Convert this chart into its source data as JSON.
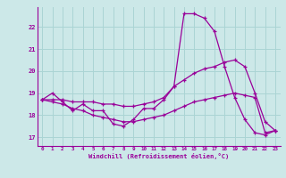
{
  "xlabel": "Windchill (Refroidissement éolien,°C)",
  "bg_color": "#cce8e8",
  "grid_color": "#aad4d4",
  "line_color": "#990099",
  "xticks": [
    0,
    1,
    2,
    3,
    4,
    5,
    6,
    7,
    8,
    9,
    10,
    11,
    12,
    13,
    14,
    15,
    16,
    17,
    18,
    19,
    20,
    21,
    22,
    23
  ],
  "yticks": [
    17,
    18,
    19,
    20,
    21,
    22
  ],
  "xlim": [
    -0.5,
    23.5
  ],
  "ylim": [
    16.6,
    22.9
  ],
  "series": [
    {
      "x": [
        0,
        1,
        2,
        3,
        4,
        5,
        6,
        7,
        8,
        9,
        10,
        11,
        12,
        13,
        14,
        15,
        16,
        17,
        18,
        19,
        20,
        21,
        22,
        23
      ],
      "y": [
        18.7,
        19.0,
        18.6,
        18.2,
        18.5,
        18.2,
        18.2,
        17.6,
        17.5,
        17.8,
        18.3,
        18.3,
        18.7,
        19.3,
        22.6,
        22.6,
        22.4,
        21.8,
        20.2,
        18.8,
        17.8,
        17.2,
        17.1,
        17.3
      ]
    },
    {
      "x": [
        0,
        1,
        2,
        3,
        4,
        5,
        6,
        7,
        8,
        9,
        10,
        11,
        12,
        13,
        14,
        15,
        16,
        17,
        18,
        19,
        20,
        21,
        22,
        23
      ],
      "y": [
        18.7,
        18.6,
        18.5,
        18.3,
        18.2,
        18.0,
        17.9,
        17.8,
        17.7,
        17.7,
        17.8,
        17.9,
        18.0,
        18.2,
        18.4,
        18.6,
        18.7,
        18.8,
        18.9,
        19.0,
        18.9,
        18.8,
        17.2,
        17.3
      ]
    },
    {
      "x": [
        0,
        1,
        2,
        3,
        4,
        5,
        6,
        7,
        8,
        9,
        10,
        11,
        12,
        13,
        14,
        15,
        16,
        17,
        18,
        19,
        20,
        21,
        22,
        23
      ],
      "y": [
        18.7,
        18.7,
        18.7,
        18.6,
        18.6,
        18.6,
        18.5,
        18.5,
        18.4,
        18.4,
        18.5,
        18.6,
        18.8,
        19.3,
        19.6,
        19.9,
        20.1,
        20.2,
        20.4,
        20.5,
        20.2,
        19.0,
        17.7,
        17.3
      ]
    }
  ]
}
